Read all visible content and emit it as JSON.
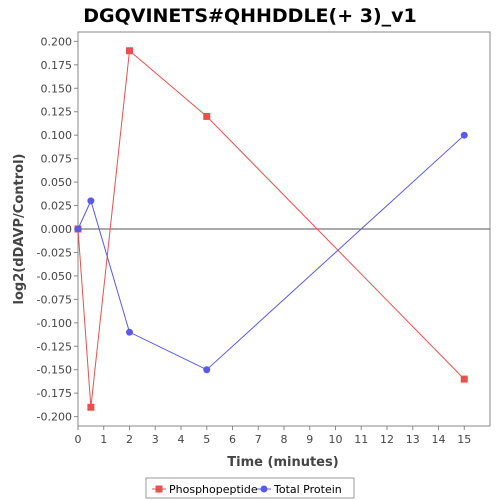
{
  "chart_data": {
    "type": "line",
    "title": "DGQVINETS#QHHDDLE(+ 3)_v1",
    "xlabel": "Time (minutes)",
    "ylabel": "log2(dDAVP/Control)",
    "xlim": [
      0,
      16
    ],
    "ylim": [
      -0.21,
      0.21
    ],
    "x_ticks": [
      0,
      1,
      2,
      3,
      4,
      5,
      6,
      7,
      8,
      9,
      10,
      11,
      12,
      13,
      14,
      15
    ],
    "x_tick_labels": [
      "0",
      "1",
      "2",
      "3",
      "4",
      "5",
      "6",
      "7",
      "8",
      "9",
      "10",
      "11",
      "12",
      "13",
      "14",
      "15"
    ],
    "y_ticks": [
      0.2,
      0.175,
      0.15,
      0.125,
      0.1,
      0.075,
      0.05,
      0.025,
      0,
      -0.025,
      -0.05,
      -0.075,
      -0.1,
      -0.125,
      -0.15,
      -0.175,
      -0.2
    ],
    "y_tick_labels": [
      "0.200",
      "0.175",
      "0.150",
      "0.125",
      "0.100",
      "0.075",
      "0.050",
      "0.025",
      "0.000",
      "-0.025",
      "-0.050",
      "-0.075",
      "-0.100",
      "-0.125",
      "-0.150",
      "-0.175",
      "-0.200"
    ],
    "zero_line": true,
    "grid": false,
    "legend_position": "bottom",
    "series": [
      {
        "name": "Phosphopeptide",
        "color": "#e8504f",
        "marker": "square",
        "points": [
          [
            0,
            0.0
          ],
          [
            0.5,
            -0.19
          ],
          [
            2,
            0.19
          ],
          [
            5,
            0.12
          ],
          [
            15,
            -0.16
          ]
        ]
      },
      {
        "name": "Total Protein",
        "color": "#5a5ae6",
        "marker": "circle",
        "points": [
          [
            0,
            0.0
          ],
          [
            0.5,
            0.03
          ],
          [
            2,
            -0.11
          ],
          [
            5,
            -0.15
          ],
          [
            15,
            0.1
          ]
        ]
      }
    ]
  }
}
